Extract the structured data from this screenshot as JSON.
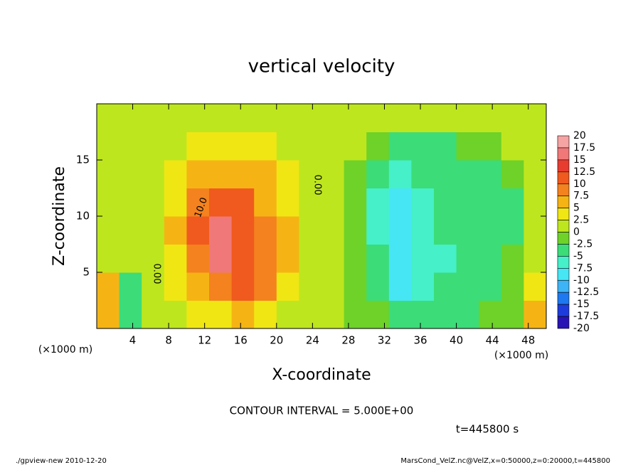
{
  "chart_data": {
    "type": "heatmap",
    "title": "vertical velocity",
    "x_label": "X-coordinate",
    "y_label": "Z-coordinate",
    "x_unit": "(×1000 m)",
    "y_unit": "(×1000 m)",
    "xlim": [
      0,
      50
    ],
    "ylim": [
      0,
      20
    ],
    "xticks": [
      4,
      8,
      12,
      16,
      20,
      24,
      28,
      32,
      36,
      40,
      44,
      48
    ],
    "yticks": [
      5,
      10,
      15
    ],
    "x": [
      1.25,
      3.75,
      6.25,
      8.75,
      11.25,
      13.75,
      16.25,
      18.75,
      21.25,
      23.75,
      26.25,
      28.75,
      31.25,
      33.75,
      36.25,
      38.75,
      41.25,
      43.75,
      46.25,
      48.75
    ],
    "y": [
      1.25,
      3.75,
      6.25,
      8.75,
      11.25,
      13.75,
      16.25,
      18.75
    ],
    "z": [
      [
        6,
        -4,
        1,
        2,
        4,
        4,
        5,
        3,
        2,
        1,
        0,
        -1,
        -2,
        -4,
        -4,
        -3,
        -3,
        -2,
        -1,
        5
      ],
      [
        6,
        -5,
        1,
        3,
        6,
        9,
        11,
        8,
        4,
        1,
        0,
        -1,
        -3,
        -9,
        -7,
        -5,
        -4,
        -4,
        -2,
        3
      ],
      [
        2,
        0,
        1,
        4,
        9,
        16,
        12,
        8,
        5,
        1,
        0,
        -1,
        -5,
        -10,
        -7,
        -6,
        -5,
        -5,
        -2,
        1
      ],
      [
        1,
        1,
        2,
        5,
        11,
        17,
        12,
        8,
        5,
        1,
        0,
        -1,
        -6,
        -9,
        -7,
        -5,
        -5,
        -5,
        -3,
        0
      ],
      [
        1,
        1,
        1,
        4,
        9,
        12,
        10,
        7,
        4,
        1,
        0,
        -1,
        -6,
        -8,
        -6,
        -5,
        -5,
        -5,
        -3,
        0
      ],
      [
        1,
        1,
        1,
        3,
        6,
        7,
        6,
        5,
        3,
        1,
        0,
        -1,
        -5,
        -6,
        -5,
        -5,
        -4,
        -4,
        -2,
        0
      ],
      [
        1,
        1,
        1,
        1,
        3,
        3,
        3,
        3,
        1,
        0,
        0,
        0,
        -2,
        -3,
        -3,
        -3,
        -2,
        -1,
        0,
        0
      ],
      [
        1,
        1,
        1,
        1,
        1,
        1,
        1,
        1,
        1,
        0,
        0,
        0,
        0,
        0,
        0,
        0,
        0,
        0,
        0,
        0
      ]
    ],
    "colorbar": {
      "levels": [
        20,
        17.5,
        15,
        12.5,
        10,
        7.5,
        5,
        2.5,
        0,
        -2.5,
        -5,
        -7.5,
        -10,
        -12.5,
        -15,
        -17.5,
        -20
      ],
      "colors": [
        "#f5a3a3",
        "#f07878",
        "#e83c30",
        "#f05a1e",
        "#f4821e",
        "#f5b414",
        "#f0e614",
        "#bee61e",
        "#6ed228",
        "#3cdc78",
        "#46f0c8",
        "#46e6f5",
        "#3cb4f5",
        "#1e78f0",
        "#1e3cdc",
        "#2814b4",
        "#6414b4"
      ]
    },
    "annotations": [
      "10.0",
      "0.00",
      "0.00"
    ],
    "contour_interval": "CONTOUR INTERVAL = 5.000E+00",
    "time": "t=445800 s",
    "footer_left": "./gpview-new  2010-12-20",
    "footer_right": "MarsCond_VelZ.nc@VelZ,x=0:50000,z=0:20000,t=445800"
  }
}
